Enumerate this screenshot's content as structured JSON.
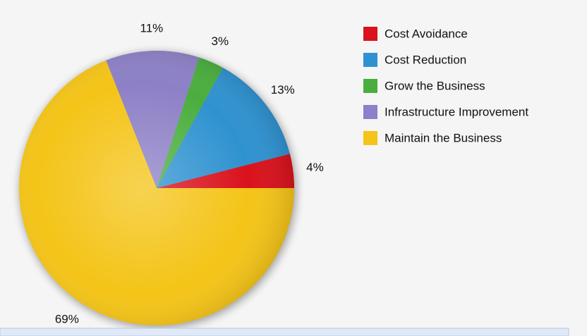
{
  "chart_data": {
    "type": "pie",
    "categories": [
      "Cost Avoidance",
      "Cost Reduction",
      "Grow the Business",
      "Infrastructure Improvement",
      "Maintain the Business"
    ],
    "values": [
      4,
      13,
      3,
      11,
      69
    ],
    "value_labels": [
      "4%",
      "13%",
      "3%",
      "11%",
      "69%"
    ],
    "colors": [
      "#d9121c",
      "#2f92d0",
      "#4aae3e",
      "#8d80c6",
      "#f4c418"
    ],
    "legend": "top-right"
  }
}
